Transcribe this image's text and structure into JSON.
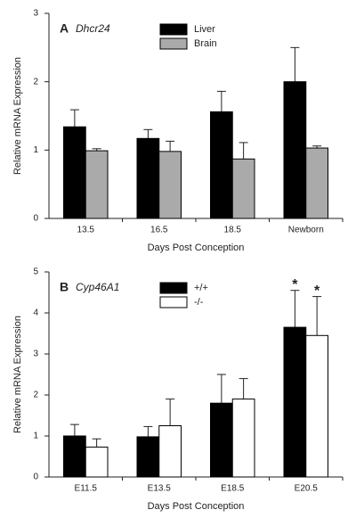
{
  "chart_data": [
    {
      "type": "bar",
      "panel": "A",
      "gene": "Dhcr24",
      "y_label": "Relative mRNA Expression",
      "x_label": "Days Post Conception",
      "categories": [
        "13.5",
        "16.5",
        "18.5",
        "Newborn"
      ],
      "series": [
        {
          "name": "Liver",
          "color": "#000000",
          "values": [
            1.34,
            1.17,
            1.56,
            2.0
          ],
          "errors": [
            0.25,
            0.13,
            0.3,
            0.5
          ]
        },
        {
          "name": "Brain",
          "color": "#aaaaaa",
          "values": [
            0.99,
            0.98,
            0.87,
            1.03
          ],
          "errors": [
            0.03,
            0.15,
            0.24,
            0.03
          ]
        }
      ],
      "ylim": [
        0,
        3
      ],
      "yticks": [
        0,
        1,
        2,
        3
      ]
    },
    {
      "type": "bar",
      "panel": "B",
      "gene": "Cyp46A1",
      "y_label": "Relative mRNA Expression",
      "x_label": "Days Post Conception",
      "categories": [
        "E11.5",
        "E13.5",
        "E18.5",
        "E20.5"
      ],
      "series": [
        {
          "name": "+/+",
          "color": "#000000",
          "values": [
            1.0,
            0.98,
            1.8,
            3.65
          ],
          "errors": [
            0.28,
            0.25,
            0.7,
            0.9
          ],
          "significance": [
            null,
            null,
            null,
            "*"
          ]
        },
        {
          "name": "-/-",
          "color": "#ffffff",
          "values": [
            0.73,
            1.25,
            1.9,
            3.45
          ],
          "errors": [
            0.2,
            0.65,
            0.5,
            0.95
          ],
          "significance": [
            null,
            null,
            null,
            "*"
          ]
        }
      ],
      "ylim": [
        0,
        5
      ],
      "yticks": [
        0,
        1,
        2,
        3,
        4,
        5
      ]
    }
  ]
}
